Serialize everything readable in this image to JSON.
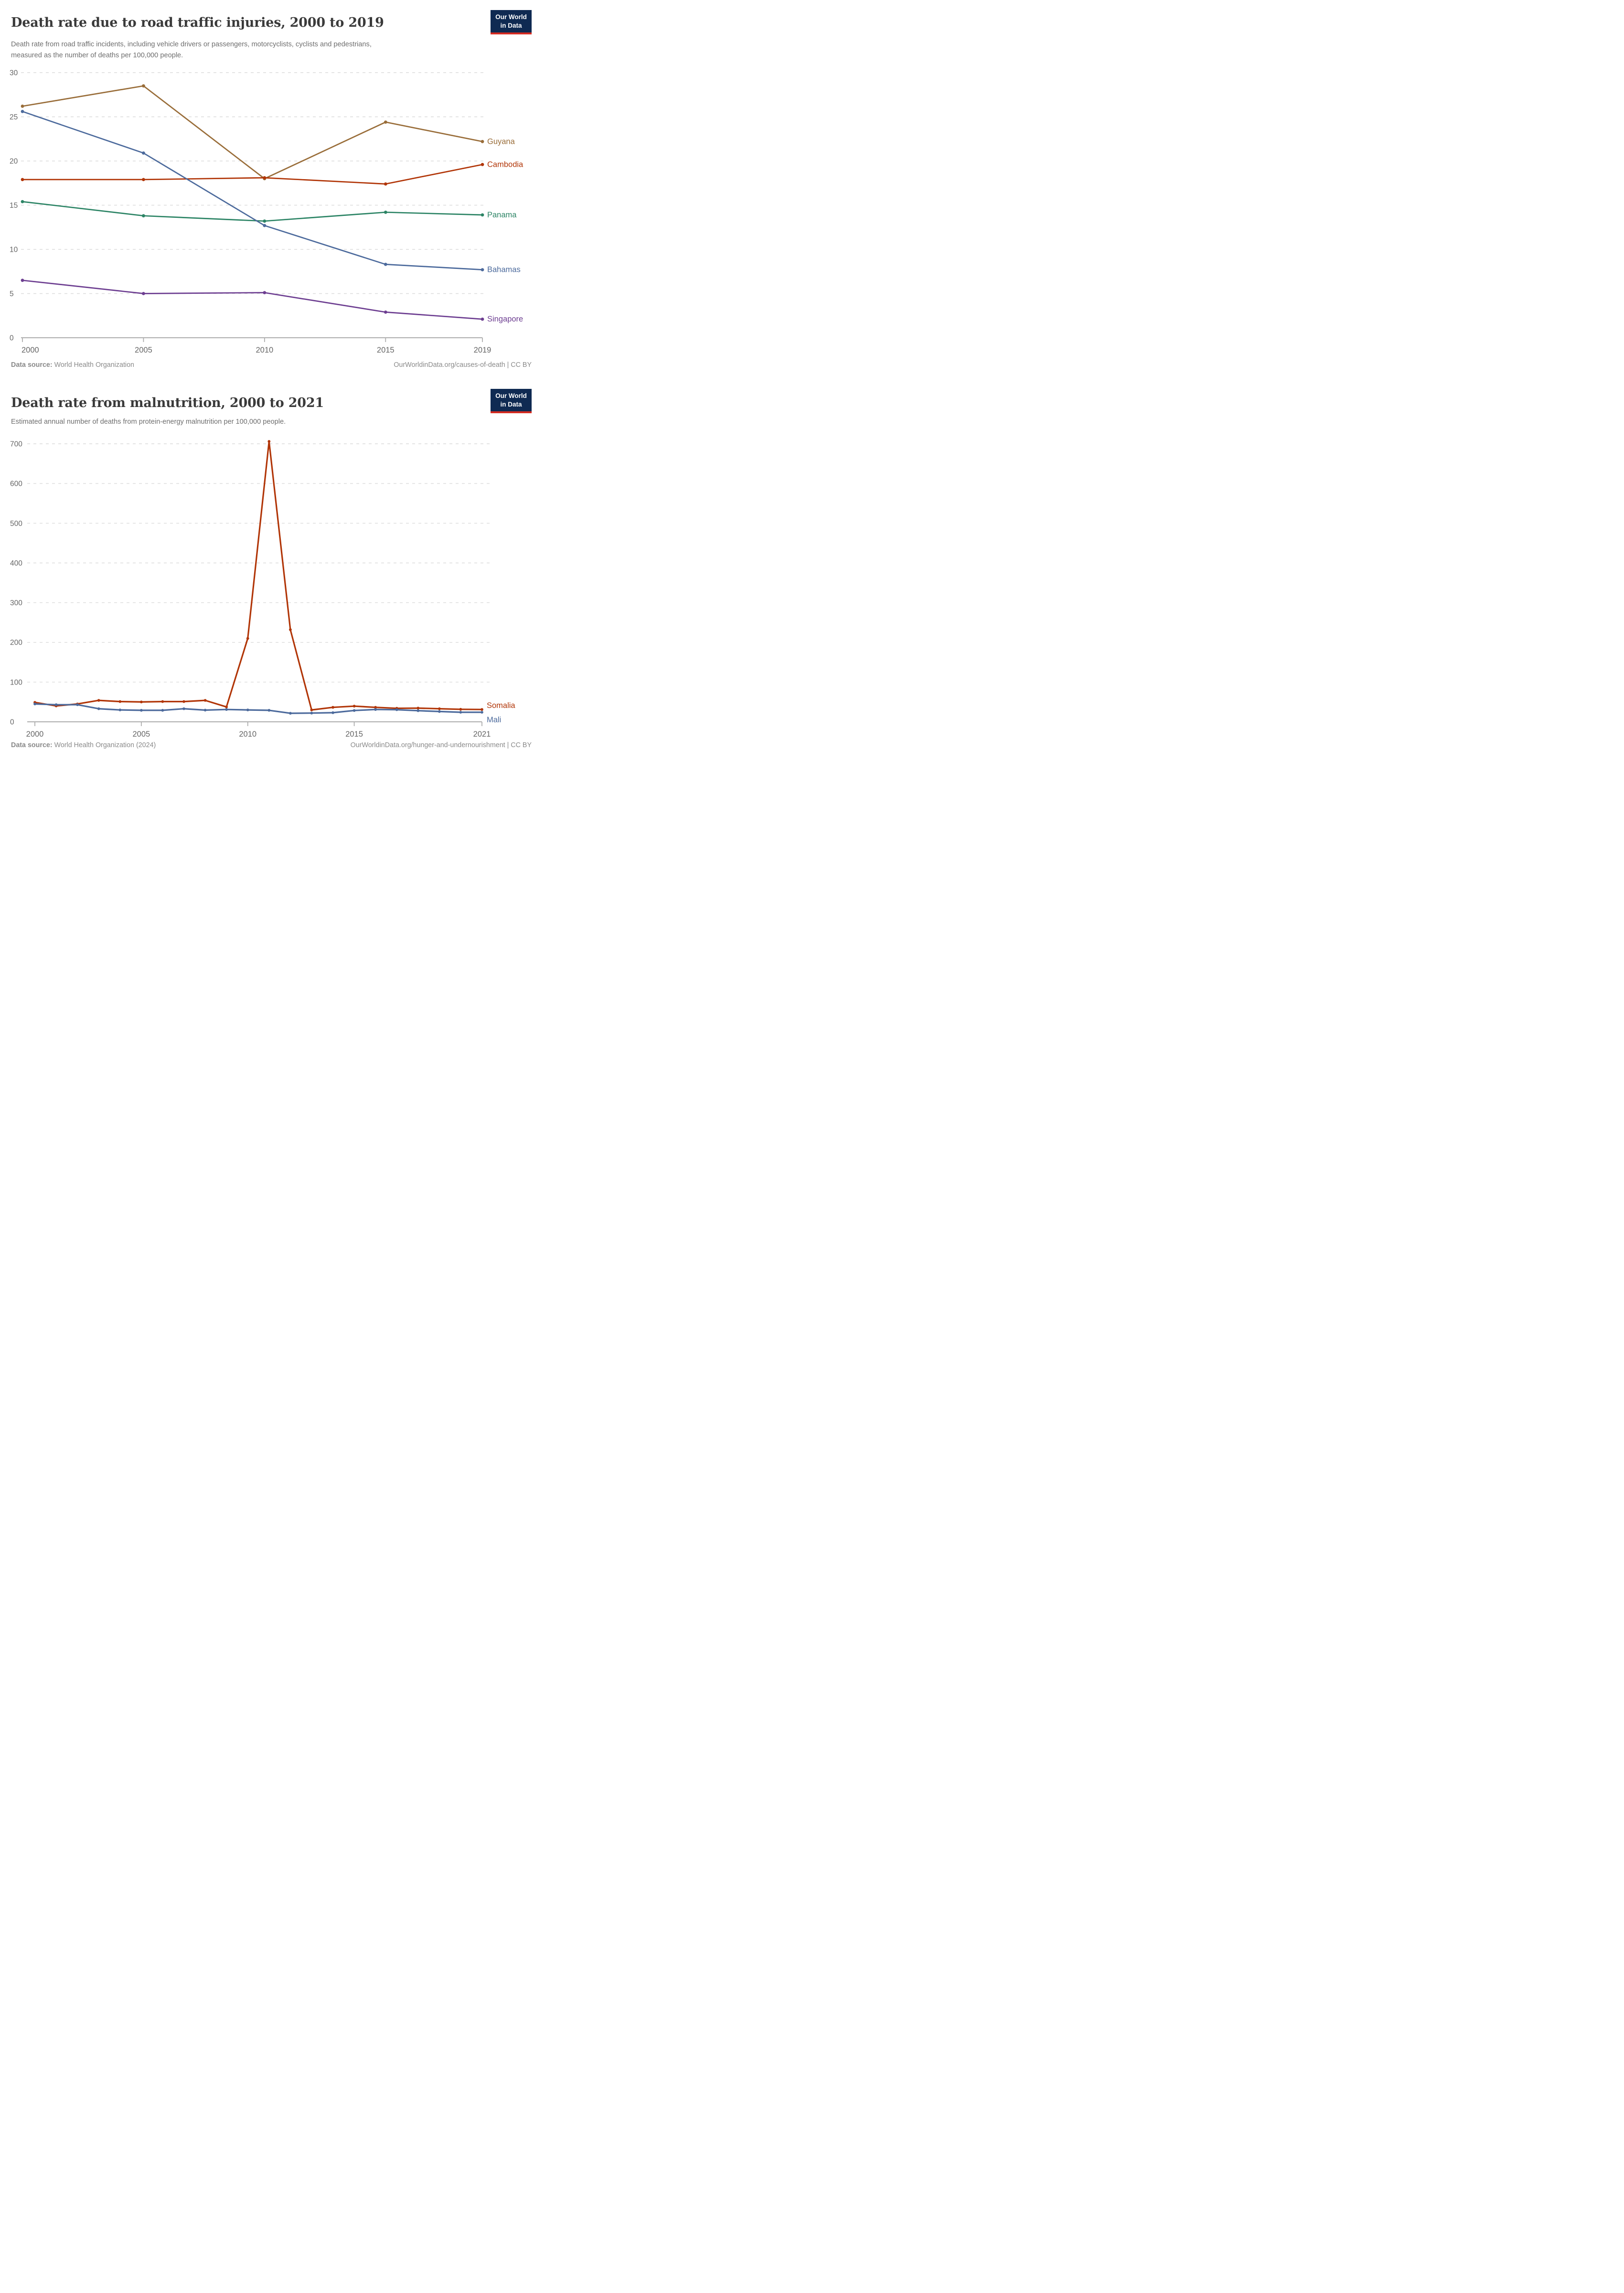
{
  "charts": [
    {
      "logo": {
        "line1": "Our World",
        "line2": "in Data",
        "bg": "#0F2A52",
        "stripe": "#D42B21",
        "text_color": "#ffffff"
      },
      "chart_data": {
        "type": "line",
        "title": "Death rate due to road traffic injuries, 2000 to 2019",
        "subtitle": "Death rate from road traffic incidents, including vehicle drivers or passengers, motorcyclists, cyclists and pedestrians, measured as the number of deaths per 100,000 people.",
        "xlabel": "",
        "ylabel": "",
        "x": [
          2000,
          2005,
          2010,
          2015,
          2019
        ],
        "xticks": [
          2000,
          2005,
          2010,
          2015,
          2019
        ],
        "ylim": [
          0,
          30
        ],
        "yticks": [
          0,
          5,
          10,
          15,
          20,
          25,
          30
        ],
        "grid": "dashed-horizontal",
        "legend_position": "right-end-labels",
        "series": [
          {
            "name": "Guyana",
            "color": "#996D39",
            "values": [
              26.2,
              28.5,
              18.0,
              24.4,
              22.2
            ],
            "label_dy": 0
          },
          {
            "name": "Cambodia",
            "color": "#B13507",
            "values": [
              17.9,
              17.9,
              18.1,
              17.4,
              19.6
            ],
            "label_dy": 0
          },
          {
            "name": "Panama",
            "color": "#2C8465",
            "values": [
              15.4,
              13.8,
              13.2,
              14.2,
              13.9
            ],
            "label_dy": 0
          },
          {
            "name": "Bahamas",
            "color": "#4C6A9C",
            "values": [
              25.6,
              20.9,
              12.7,
              8.3,
              7.7
            ],
            "label_dy": 0
          },
          {
            "name": "Singapore",
            "color": "#6D3E91",
            "values": [
              6.5,
              5.0,
              5.1,
              2.9,
              2.1
            ],
            "label_dy": 0
          }
        ]
      },
      "footer": {
        "source_label": "Data source:",
        "source_value": "World Health Organization",
        "citation": "OurWorldinData.org/causes-of-death | CC BY"
      }
    },
    {
      "logo": {
        "line1": "Our World",
        "line2": "in Data",
        "bg": "#0F2A52",
        "stripe": "#D42B21",
        "text_color": "#ffffff"
      },
      "chart_data": {
        "type": "line",
        "title": "Death rate from malnutrition, 2000 to 2021",
        "subtitle": "Estimated annual number of deaths from protein-energy malnutrition per 100,000 people.",
        "xlabel": "",
        "ylabel": "",
        "x": [
          2000,
          2001,
          2002,
          2003,
          2004,
          2005,
          2006,
          2007,
          2008,
          2009,
          2010,
          2011,
          2012,
          2013,
          2014,
          2015,
          2016,
          2017,
          2018,
          2019,
          2020,
          2021
        ],
        "xticks": [
          2000,
          2005,
          2010,
          2015,
          2021
        ],
        "ylim": [
          0,
          700
        ],
        "yticks": [
          0,
          100,
          200,
          300,
          400,
          500,
          600,
          700
        ],
        "grid": "dashed-horizontal",
        "legend_position": "right-end-labels",
        "series": [
          {
            "name": "Somalia",
            "color": "#B13507",
            "values": [
              49,
              40,
              45,
              54,
              51,
              50,
              51,
              51,
              54,
              37.5,
              210,
              706,
              232,
              30,
              36.5,
              39.5,
              36.5,
              34,
              34.5,
              33,
              31.5,
              31
            ],
            "label_dy": -8
          },
          {
            "name": "Mali",
            "color": "#4C6A9C",
            "values": [
              45,
              43,
              43,
              33,
              30,
              29,
              29,
              33,
              29.5,
              31,
              30,
              29,
              21.5,
              22,
              23,
              28.5,
              31,
              30.5,
              28,
              26,
              24,
              24
            ],
            "label_dy": 16
          }
        ]
      },
      "footer": {
        "source_label": "Data source:",
        "source_value": "World Health Organization (2024)",
        "citation": "OurWorldinData.org/hunger-and-undernourishment | CC BY"
      }
    }
  ]
}
